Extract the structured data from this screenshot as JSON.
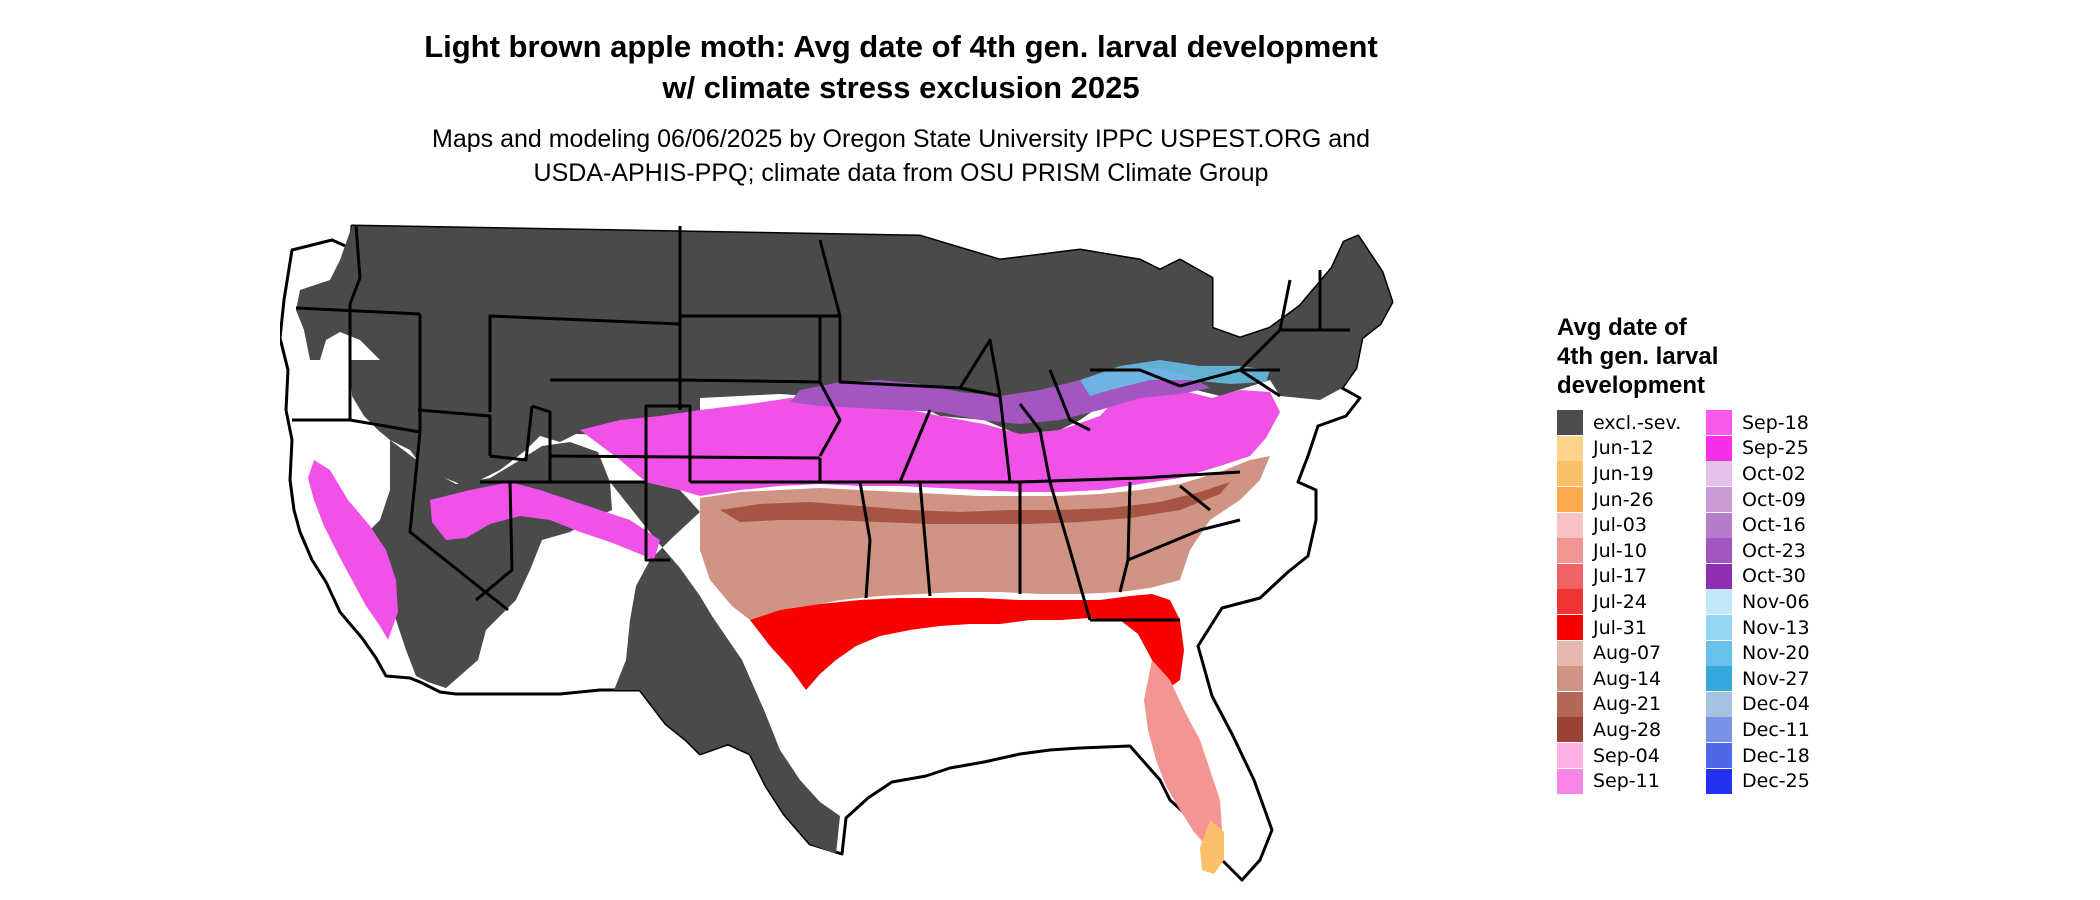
{
  "title_line1": "Light brown apple moth: Avg date of 4th gen. larval development",
  "title_line2": "w/ climate stress exclusion 2025",
  "subtitle_line1": "Maps and modeling 06/06/2025 by Oregon State University IPPC USPEST.ORG and",
  "subtitle_line2": "USDA-APHIS-PPQ; climate data from OSU PRISM Climate Group",
  "legend": {
    "title_line1": "Avg date of",
    "title_line2": "4th gen. larval",
    "title_line3": "development",
    "items": [
      {
        "label": "excl.-sev.",
        "color": "#4d4d4d"
      },
      {
        "label": "Jun-12",
        "color": "#fdd38b"
      },
      {
        "label": "Jun-19",
        "color": "#fdc06a"
      },
      {
        "label": "Jun-26",
        "color": "#fdaa4f"
      },
      {
        "label": "Jul-03",
        "color": "#f7c3c3"
      },
      {
        "label": "Jul-10",
        "color": "#f49595"
      },
      {
        "label": "Jul-17",
        "color": "#f06363"
      },
      {
        "label": "Jul-24",
        "color": "#f03434"
      },
      {
        "label": "Jul-31",
        "color": "#fa0000"
      },
      {
        "label": "Aug-07",
        "color": "#e6b8ad"
      },
      {
        "label": "Aug-14",
        "color": "#cf9483"
      },
      {
        "label": "Aug-21",
        "color": "#b3695a"
      },
      {
        "label": "Aug-28",
        "color": "#9b4333"
      },
      {
        "label": "Sep-04",
        "color": "#fcb3e3"
      },
      {
        "label": "Sep-11",
        "color": "#fb86e7"
      },
      {
        "label": "Sep-18",
        "color": "#f95ae9"
      },
      {
        "label": "Sep-25",
        "color": "#f52eea"
      },
      {
        "label": "Oct-02",
        "color": "#e3c1e8"
      },
      {
        "label": "Oct-09",
        "color": "#cb9ad6"
      },
      {
        "label": "Oct-16",
        "color": "#b77bcc"
      },
      {
        "label": "Oct-23",
        "color": "#a356bf"
      },
      {
        "label": "Oct-30",
        "color": "#8f2fb0"
      },
      {
        "label": "Nov-06",
        "color": "#bfe8f8"
      },
      {
        "label": "Nov-13",
        "color": "#93d6f2"
      },
      {
        "label": "Nov-20",
        "color": "#66c2ea"
      },
      {
        "label": "Nov-27",
        "color": "#37a8de"
      },
      {
        "label": "Dec-04",
        "color": "#a6c2e3"
      },
      {
        "label": "Dec-11",
        "color": "#7a92e6"
      },
      {
        "label": "Dec-18",
        "color": "#4e68ea"
      },
      {
        "label": "Dec-25",
        "color": "#2332f0"
      }
    ]
  }
}
